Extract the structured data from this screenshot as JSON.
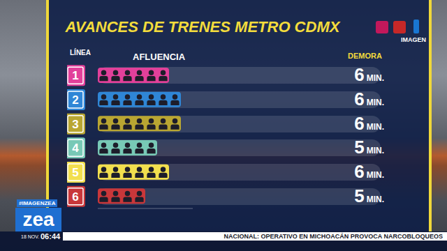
{
  "chart_data": {
    "type": "bar",
    "orientation": "horizontal",
    "title": "AVANCES DE TRENES METRO CDMX",
    "category_label": "LÍNEA",
    "value_label": "AFLUENCIA",
    "categories": [
      "1",
      "2",
      "3",
      "4",
      "5",
      "6"
    ],
    "values": [
      6,
      7,
      7,
      5,
      6,
      4
    ],
    "colors": [
      "#e2409a",
      "#2f86d6",
      "#b9a632",
      "#78c9b6",
      "#f2df4e",
      "#c9373a"
    ],
    "xlim": [
      0,
      8
    ],
    "xticks": [],
    "tick_labels": false,
    "delay": {
      "label": "DEMORA",
      "values": [
        6,
        6,
        6,
        5,
        6,
        5
      ],
      "unit": "MIN."
    }
  },
  "screen": {
    "logo": "IMAGEN",
    "hashtag": "#IMAGENZEA",
    "program": "zea",
    "date": "18 NOV.",
    "time": "06:44",
    "ticker": "NACIONAL: OPERATIVO EN MICHOACÁN PROVOCA NARCOBLOQUEOS"
  }
}
